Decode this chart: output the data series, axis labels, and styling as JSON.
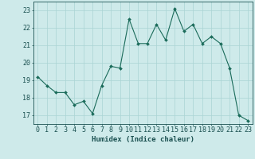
{
  "x": [
    0,
    1,
    2,
    3,
    4,
    5,
    6,
    7,
    8,
    9,
    10,
    11,
    12,
    13,
    14,
    15,
    16,
    17,
    18,
    19,
    20,
    21,
    22,
    23
  ],
  "y": [
    19.2,
    18.7,
    18.3,
    18.3,
    17.6,
    17.8,
    17.1,
    18.7,
    19.8,
    19.7,
    22.5,
    21.1,
    21.1,
    22.2,
    21.3,
    23.1,
    21.8,
    22.2,
    21.1,
    21.5,
    21.1,
    19.7,
    17.0,
    16.7
  ],
  "line_color": "#1a6b5a",
  "marker": "D",
  "marker_size": 2.0,
  "bg_color": "#ceeaea",
  "grid_color": "#aad4d4",
  "xlabel": "Humidex (Indice chaleur)",
  "ylim": [
    16.5,
    23.5
  ],
  "xlim": [
    -0.5,
    23.5
  ],
  "yticks": [
    17,
    18,
    19,
    20,
    21,
    22,
    23
  ],
  "xticks": [
    0,
    1,
    2,
    3,
    4,
    5,
    6,
    7,
    8,
    9,
    10,
    11,
    12,
    13,
    14,
    15,
    16,
    17,
    18,
    19,
    20,
    21,
    22,
    23
  ],
  "tick_color": "#1a5050",
  "label_fontsize": 6.5,
  "tick_fontsize": 6.0,
  "linewidth": 0.8
}
